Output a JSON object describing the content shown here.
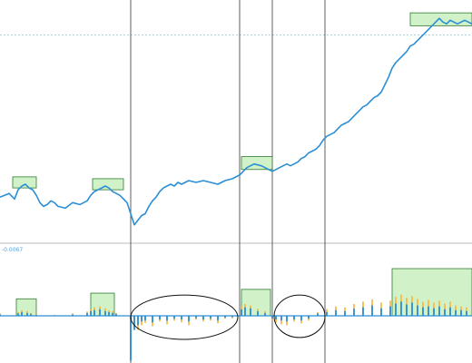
{
  "chart_data": [
    {
      "type": "line",
      "panel": "upper",
      "title": "",
      "xlabel": "",
      "ylabel": "",
      "grid": false,
      "legend": "none",
      "x_range": [
        0,
        260
      ],
      "series": [
        {
          "color": "#2b8fd6",
          "x": [
            0,
            5,
            8,
            10,
            12,
            14,
            16,
            18,
            20,
            22,
            24,
            26,
            28,
            30,
            32,
            36,
            40,
            44,
            48,
            50,
            52,
            54,
            56,
            58,
            60,
            62,
            66,
            70,
            74,
            78,
            80,
            82,
            84,
            86,
            88,
            90,
            92,
            94,
            96,
            98,
            100,
            104,
            108,
            112,
            116,
            120,
            124,
            128,
            132,
            136,
            140,
            144,
            148,
            150,
            152,
            154,
            156,
            158,
            160,
            162,
            164,
            166,
            168,
            170,
            172,
            174,
            176,
            178,
            180,
            182,
            184,
            186,
            188,
            190,
            192,
            194,
            196,
            198,
            200,
            202,
            204,
            206,
            208,
            210,
            212,
            214,
            216,
            218,
            220,
            222,
            224,
            226,
            228,
            230,
            232,
            234,
            236,
            238,
            240,
            242,
            244,
            246,
            248,
            250,
            252,
            254,
            256,
            258,
            260
          ],
          "y": [
            45,
            47,
            44,
            49,
            51,
            52,
            50,
            49,
            46,
            42,
            40,
            41,
            43,
            42,
            40,
            39,
            42,
            41,
            43,
            46,
            48,
            49,
            50,
            51,
            50,
            48,
            46,
            42,
            30,
            35,
            36,
            40,
            43,
            45,
            48,
            50,
            51,
            52,
            51,
            53,
            52,
            54,
            53,
            54,
            53,
            52,
            54,
            55,
            57,
            61,
            63,
            62,
            60,
            59,
            60,
            61,
            62,
            63,
            62,
            63,
            64,
            66,
            67,
            69,
            70,
            71,
            73,
            76,
            78,
            79,
            80,
            82,
            84,
            85,
            86,
            88,
            90,
            92,
            94,
            95,
            97,
            99,
            100,
            102,
            106,
            110,
            115,
            118,
            120,
            122,
            124,
            127,
            128,
            130,
            132,
            134,
            136,
            138,
            140,
            142,
            140,
            139,
            141,
            140,
            139,
            140,
            141,
            140,
            139
          ]
        }
      ],
      "markers": {
        "vertical_lines": [
          72,
          132,
          150,
          179
        ],
        "horizontal_level": 133,
        "highlight_boxes": [
          {
            "x_range": [
              7,
              20
            ],
            "y_range": [
              50,
              56
            ]
          },
          {
            "x_range": [
              51,
              68
            ],
            "y_range": [
              49,
              55
            ]
          },
          {
            "x_range": [
              133,
              150
            ],
            "y_range": [
              60,
              67
            ]
          },
          {
            "x_range": [
              226,
              260
            ],
            "y_range": [
              138,
              145
            ]
          }
        ]
      }
    },
    {
      "type": "bar",
      "panel": "lower",
      "title": "",
      "xlabel": "",
      "ylabel": "",
      "readout_label": "-0.0067",
      "grid": false,
      "legend": "none",
      "x_range": [
        0,
        260
      ],
      "ylim": [
        -1,
        1
      ],
      "series": [
        {
          "color": "#f5b942",
          "x": [
            0,
            10,
            12,
            15,
            17,
            20,
            30,
            40,
            48,
            50,
            52,
            55,
            58,
            60,
            62,
            64,
            72,
            74,
            76,
            78,
            80,
            84,
            88,
            92,
            96,
            100,
            104,
            108,
            112,
            116,
            120,
            124,
            128,
            133,
            135,
            138,
            142,
            146,
            150,
            152,
            155,
            158,
            162,
            166,
            170,
            175,
            180,
            185,
            190,
            195,
            200,
            205,
            210,
            215,
            218,
            221,
            224,
            227,
            230,
            233,
            236,
            239,
            242,
            245,
            248,
            251,
            254,
            257
          ],
          "values": [
            0.05,
            0.08,
            0.12,
            0.1,
            0.06,
            0.04,
            0.02,
            0.05,
            0.09,
            0.14,
            0.18,
            0.2,
            0.16,
            0.12,
            0.1,
            0.06,
            -0.4,
            -0.25,
            -0.3,
            -0.2,
            -0.15,
            -0.22,
            -0.12,
            -0.18,
            -0.1,
            -0.14,
            -0.2,
            -0.08,
            -0.12,
            -0.1,
            -0.16,
            -0.06,
            -0.05,
            0.2,
            0.25,
            0.22,
            0.15,
            0.1,
            -0.1,
            -0.14,
            -0.18,
            -0.2,
            -0.12,
            -0.16,
            -0.1,
            0.08,
            0.14,
            0.2,
            0.18,
            0.25,
            0.3,
            0.35,
            0.28,
            0.32,
            0.4,
            0.45,
            0.38,
            0.42,
            0.36,
            0.3,
            0.34,
            0.28,
            0.32,
            0.26,
            0.3,
            0.22,
            0.2,
            0.18
          ]
        },
        {
          "color": "#2b8fd6",
          "x": [
            0,
            10,
            12,
            15,
            17,
            20,
            30,
            40,
            48,
            50,
            52,
            55,
            58,
            60,
            62,
            64,
            72,
            74,
            76,
            78,
            80,
            84,
            88,
            92,
            96,
            100,
            104,
            108,
            112,
            116,
            120,
            124,
            128,
            133,
            135,
            138,
            142,
            146,
            150,
            152,
            155,
            158,
            162,
            166,
            170,
            175,
            180,
            185,
            190,
            195,
            200,
            205,
            210,
            215,
            218,
            221,
            224,
            227,
            230,
            233,
            236,
            239,
            242,
            245,
            248,
            251,
            254,
            257
          ],
          "values": [
            0.03,
            0.05,
            0.08,
            0.06,
            0.04,
            0.02,
            0.01,
            0.03,
            0.06,
            0.1,
            0.12,
            0.14,
            0.1,
            0.08,
            0.06,
            0.04,
            -0.95,
            -0.3,
            -0.2,
            -0.12,
            -0.1,
            -0.14,
            -0.08,
            -0.1,
            -0.06,
            -0.08,
            -0.12,
            -0.05,
            -0.08,
            -0.06,
            -0.1,
            -0.04,
            -0.03,
            0.14,
            0.18,
            0.16,
            0.1,
            0.06,
            -0.06,
            -0.08,
            -0.1,
            -0.12,
            -0.08,
            -0.1,
            -0.06,
            0.05,
            0.08,
            0.12,
            0.1,
            0.15,
            0.18,
            0.22,
            0.16,
            0.2,
            0.26,
            0.3,
            0.24,
            0.28,
            0.22,
            0.18,
            0.2,
            0.16,
            0.2,
            0.14,
            0.18,
            0.12,
            0.12,
            0.1
          ]
        }
      ],
      "markers": {
        "vertical_lines": [
          72,
          132,
          150,
          179
        ],
        "horizontal_level": 0,
        "highlight_boxes": [
          {
            "x_range": [
              9,
              20
            ],
            "y_range": [
              0,
              0.36
            ]
          },
          {
            "x_range": [
              50,
              63
            ],
            "y_range": [
              0,
              0.48
            ]
          },
          {
            "x_range": [
              133,
              149
            ],
            "y_range": [
              0,
              0.56
            ]
          },
          {
            "x_range": [
              216,
              260
            ],
            "y_range": [
              0,
              1.0
            ]
          }
        ],
        "ellipses": [
          {
            "x_range": [
              72,
              131
            ],
            "y_range": [
              -0.5,
              0.44
            ]
          },
          {
            "x_range": [
              151,
              179
            ],
            "y_range": [
              -0.46,
              0.44
            ]
          }
        ]
      }
    }
  ]
}
